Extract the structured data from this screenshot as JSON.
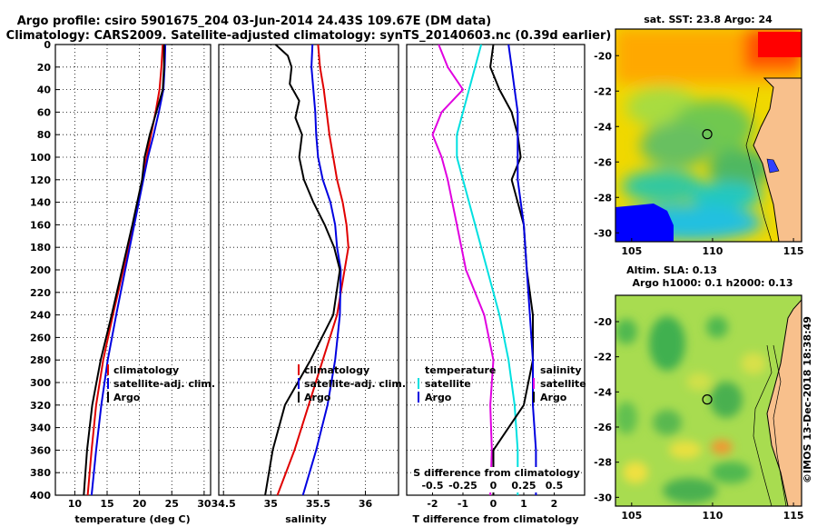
{
  "header": {
    "title_line1": "Argo profile: csiro 5901675_204 03-Jun-2014 24.43S 109.67E (DM data)",
    "title_line2": "Climatology: CARS2009. Satellite-adjusted climatology: synTS_20140603.nc (0.39d earlier)"
  },
  "credit": "©IMOS 13-Dec-2018 18:38:49",
  "colors": {
    "argo": "#000000",
    "climatology": "#e00000",
    "satellite": "#0000e0",
    "s_diff": "#e000e0",
    "t_diff": "#00e0e0"
  },
  "depth_ticks": [
    "0",
    "20",
    "40",
    "60",
    "80",
    "100",
    "120",
    "140",
    "160",
    "180",
    "200",
    "220",
    "240",
    "260",
    "280",
    "300",
    "320",
    "340",
    "360",
    "380",
    "400"
  ],
  "chart_data": [
    {
      "type": "line",
      "name": "temperature",
      "xlabel": "temperature (deg C)",
      "ylabel": "depth",
      "xlim": [
        7,
        31
      ],
      "ylim": [
        400,
        0
      ],
      "x_ticks": [
        "10",
        "15",
        "20",
        "25",
        "30"
      ],
      "x_tick_values": [
        10,
        15,
        20,
        25,
        30
      ],
      "legend": [
        "climatology",
        "satellite-adj. clim.",
        "Argo"
      ],
      "series": [
        {
          "name": "climatology",
          "color": "#e00000",
          "depth": [
            0,
            20,
            40,
            60,
            80,
            100,
            120,
            160,
            200,
            240,
            280,
            320,
            360,
            400
          ],
          "values": [
            23.6,
            23.4,
            23.1,
            22.5,
            21.8,
            21.1,
            20.5,
            19.0,
            17.5,
            15.9,
            14.4,
            13.3,
            12.6,
            12.0
          ]
        },
        {
          "name": "satellite-adj. clim.",
          "color": "#0000e0",
          "depth": [
            0,
            20,
            40,
            60,
            80,
            100,
            120,
            160,
            200,
            240,
            280,
            320,
            360,
            400
          ],
          "values": [
            24.0,
            23.9,
            23.7,
            23.0,
            22.2,
            21.3,
            20.6,
            19.2,
            17.8,
            16.4,
            15.1,
            14.1,
            13.3,
            12.6
          ]
        },
        {
          "name": "Argo",
          "color": "#000000",
          "depth": [
            0,
            20,
            40,
            60,
            80,
            100,
            120,
            160,
            200,
            240,
            280,
            320,
            360,
            400
          ],
          "values": [
            23.8,
            23.8,
            23.6,
            22.6,
            21.6,
            20.8,
            20.4,
            18.9,
            17.3,
            15.7,
            14.0,
            12.7,
            11.9,
            11.4
          ]
        }
      ]
    },
    {
      "type": "line",
      "name": "salinity",
      "xlabel": "salinity",
      "xlim": [
        34.45,
        36.35
      ],
      "ylim": [
        400,
        0
      ],
      "x_ticks": [
        "34.5",
        "35",
        "35.5",
        "36"
      ],
      "x_tick_values": [
        34.5,
        35,
        35.5,
        36
      ],
      "legend": [
        "climatology",
        "satellite-adj. clim.",
        "Argo"
      ],
      "series": [
        {
          "name": "climatology",
          "color": "#e00000",
          "depth": [
            0,
            20,
            40,
            60,
            80,
            100,
            120,
            140,
            160,
            180,
            200,
            240,
            280,
            320,
            360,
            400
          ],
          "values": [
            35.5,
            35.52,
            35.56,
            35.59,
            35.62,
            35.66,
            35.7,
            35.76,
            35.8,
            35.82,
            35.78,
            35.7,
            35.55,
            35.4,
            35.25,
            35.07
          ]
        },
        {
          "name": "satellite-adj. clim.",
          "color": "#0000e0",
          "depth": [
            0,
            20,
            40,
            60,
            80,
            100,
            120,
            140,
            160,
            180,
            200,
            240,
            280,
            320,
            360,
            400
          ],
          "values": [
            35.44,
            35.43,
            35.45,
            35.47,
            35.48,
            35.5,
            35.55,
            35.63,
            35.68,
            35.7,
            35.74,
            35.73,
            35.68,
            35.6,
            35.48,
            35.34
          ]
        },
        {
          "name": "Argo",
          "color": "#000000",
          "depth": [
            0,
            10,
            20,
            35,
            50,
            65,
            80,
            100,
            120,
            140,
            160,
            180,
            200,
            240,
            280,
            320,
            360,
            400
          ],
          "values": [
            35.05,
            35.18,
            35.22,
            35.2,
            35.3,
            35.26,
            35.33,
            35.3,
            35.35,
            35.45,
            35.57,
            35.67,
            35.73,
            35.66,
            35.42,
            35.15,
            35.02,
            34.94
          ]
        }
      ]
    },
    {
      "type": "line",
      "name": "differences",
      "xlabel": "T difference from climatology",
      "xlabel_top": "S difference from climatology",
      "xlim": [
        -2.85,
        3.0
      ],
      "ylim": [
        400,
        0
      ],
      "x_ticks": [
        "-2",
        "-1",
        "0",
        "1",
        "2"
      ],
      "x_tick_values": [
        -2,
        -1,
        0,
        1,
        2
      ],
      "s_ticks": [
        "-0.5",
        "-0.25",
        "0",
        "0.25",
        "0.5"
      ],
      "s_tick_positions": [
        -2,
        -1,
        0,
        1,
        2
      ],
      "legend_left": {
        "title": "temperature",
        "items": [
          "satellite",
          "Argo"
        ]
      },
      "legend_right": {
        "title": "salinity",
        "items": [
          "satellite",
          "Argo"
        ]
      },
      "series": [
        {
          "name": "S satellite diff",
          "color": "#e000e0",
          "depth": [
            0,
            20,
            40,
            60,
            80,
            100,
            120,
            160,
            200,
            240,
            280,
            320,
            360,
            400
          ],
          "values": [
            -1.8,
            -1.5,
            -1.0,
            -1.7,
            -2.0,
            -1.7,
            -1.5,
            -1.2,
            -0.9,
            -0.3,
            0.0,
            -0.1,
            -0.05,
            -0.1
          ]
        },
        {
          "name": "T satellite diff",
          "color": "#00e0e0",
          "depth": [
            0,
            20,
            40,
            60,
            80,
            100,
            120,
            160,
            200,
            240,
            280,
            320,
            360,
            400
          ],
          "values": [
            -0.4,
            -0.6,
            -0.8,
            -1.0,
            -1.2,
            -1.2,
            -1.0,
            -0.6,
            -0.2,
            0.2,
            0.5,
            0.7,
            0.8,
            0.8
          ]
        },
        {
          "name": "S Argo diff",
          "color": "#000000",
          "depth": [
            0,
            20,
            40,
            60,
            80,
            100,
            120,
            160,
            200,
            240,
            280,
            320,
            360,
            400
          ],
          "values": [
            0.0,
            -0.1,
            0.2,
            0.6,
            0.8,
            0.9,
            0.6,
            1.0,
            1.1,
            1.3,
            1.3,
            1.0,
            0.0,
            0.0
          ]
        },
        {
          "name": "T Argo diff",
          "color": "#0000e0",
          "depth": [
            0,
            20,
            40,
            60,
            80,
            100,
            120,
            160,
            200,
            240,
            280,
            320,
            360,
            400
          ],
          "values": [
            0.5,
            0.6,
            0.7,
            0.8,
            0.8,
            0.8,
            0.8,
            1.0,
            1.1,
            1.2,
            1.3,
            1.3,
            1.4,
            1.4
          ]
        }
      ]
    },
    {
      "type": "heatmap",
      "name": "sst_map",
      "title": "sat. SST: 23.8 Argo: 24",
      "xlim": [
        104,
        115.5
      ],
      "ylim": [
        -30.5,
        -18.5
      ],
      "x_ticks": [
        "105",
        "110",
        "115"
      ],
      "x_tick_values": [
        105,
        110,
        115
      ],
      "y_ticks": [
        "-20",
        "-22",
        "-24",
        "-26",
        "-28",
        "-30"
      ],
      "y_tick_values": [
        -20,
        -22,
        -24,
        -26,
        -28,
        -30
      ],
      "argo_position": [
        109.67,
        -24.43
      ]
    },
    {
      "type": "heatmap",
      "name": "sla_map",
      "title_line1": "Altim. SLA: 0.13",
      "title_line2": "Argo h1000: 0.1 h2000: 0.13",
      "xlim": [
        104,
        115.5
      ],
      "ylim": [
        -30.5,
        -18.5
      ],
      "x_ticks": [
        "105",
        "110",
        "115"
      ],
      "x_tick_values": [
        105,
        110,
        115
      ],
      "y_ticks": [
        "-20",
        "-22",
        "-24",
        "-26",
        "-28",
        "-30"
      ],
      "y_tick_values": [
        -20,
        -22,
        -24,
        -26,
        -28,
        -30
      ],
      "argo_position": [
        109.67,
        -24.43
      ]
    }
  ]
}
